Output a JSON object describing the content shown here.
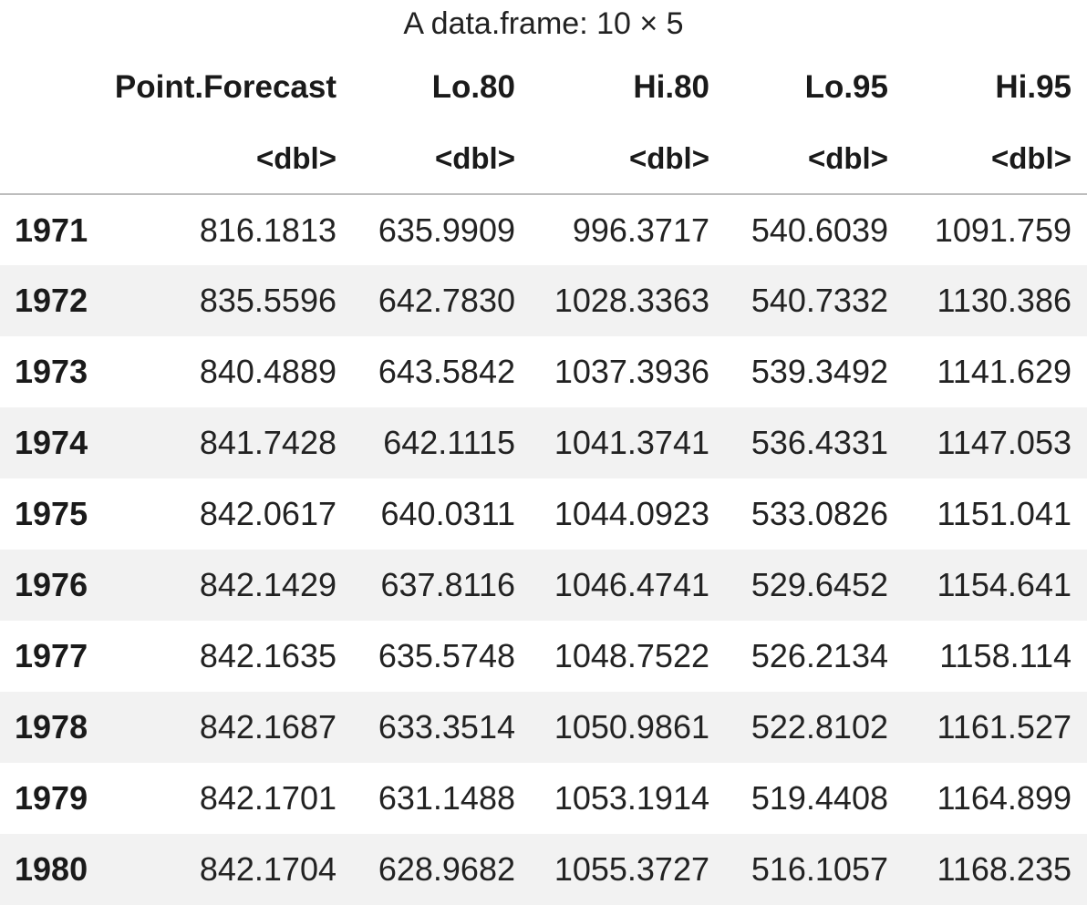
{
  "caption": "A data.frame: 10 × 5",
  "columns": [
    {
      "name": "Point.Forecast",
      "type": "<dbl>"
    },
    {
      "name": "Lo.80",
      "type": "<dbl>"
    },
    {
      "name": "Hi.80",
      "type": "<dbl>"
    },
    {
      "name": "Lo.95",
      "type": "<dbl>"
    },
    {
      "name": "Hi.95",
      "type": "<dbl>"
    }
  ],
  "rows": [
    {
      "index": "1971",
      "values": [
        "816.1813",
        "635.9909",
        "996.3717",
        "540.6039",
        "1091.759"
      ]
    },
    {
      "index": "1972",
      "values": [
        "835.5596",
        "642.7830",
        "1028.3363",
        "540.7332",
        "1130.386"
      ]
    },
    {
      "index": "1973",
      "values": [
        "840.4889",
        "643.5842",
        "1037.3936",
        "539.3492",
        "1141.629"
      ]
    },
    {
      "index": "1974",
      "values": [
        "841.7428",
        "642.1115",
        "1041.3741",
        "536.4331",
        "1147.053"
      ]
    },
    {
      "index": "1975",
      "values": [
        "842.0617",
        "640.0311",
        "1044.0923",
        "533.0826",
        "1151.041"
      ]
    },
    {
      "index": "1976",
      "values": [
        "842.1429",
        "637.8116",
        "1046.4741",
        "529.6452",
        "1154.641"
      ]
    },
    {
      "index": "1977",
      "values": [
        "842.1635",
        "635.5748",
        "1048.7522",
        "526.2134",
        "1158.114"
      ]
    },
    {
      "index": "1978",
      "values": [
        "842.1687",
        "633.3514",
        "1050.9861",
        "522.8102",
        "1161.527"
      ]
    },
    {
      "index": "1979",
      "values": [
        "842.1701",
        "631.1488",
        "1053.1914",
        "519.4408",
        "1164.899"
      ]
    },
    {
      "index": "1980",
      "values": [
        "842.1704",
        "628.9682",
        "1055.3727",
        "516.1057",
        "1168.235"
      ]
    }
  ]
}
